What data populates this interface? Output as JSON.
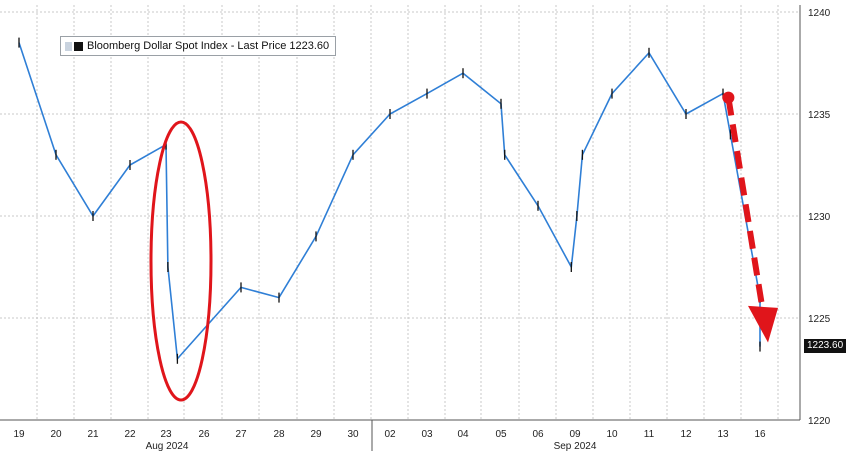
{
  "legend": {
    "label": "Bloomberg Dollar Spot Index - Last Price",
    "last_price": "1223.60"
  },
  "colors": {
    "line": "#2f7fd6",
    "candle": "#111111",
    "annotation": "#e0151b",
    "grid": "#c8c8c8"
  },
  "chart_data": {
    "type": "line",
    "title": "",
    "series": [
      {
        "name": "Bloomberg Dollar Spot Index - Last Price",
        "x": [
          "19",
          "20",
          "21",
          "22",
          "23",
          "23",
          "23",
          "26",
          "27",
          "28",
          "29",
          "30",
          "02",
          "03",
          "04",
          "04",
          "05",
          "06",
          "06",
          "06",
          "09",
          "10",
          "11",
          "12",
          "12",
          "13",
          "16"
        ],
        "x_index": [
          0,
          1,
          2,
          3,
          4,
          4.05,
          4.3,
          6,
          7,
          8,
          9,
          10,
          11,
          12,
          13,
          13.1,
          14,
          14.9,
          15.05,
          15.2,
          16,
          17,
          18,
          19,
          19.2,
          20,
          21
        ],
        "values": [
          1238.5,
          1233.0,
          1230.0,
          1232.5,
          1233.5,
          1227.5,
          1223.0,
          1226.5,
          1226.0,
          1229.0,
          1233.0,
          1235.0,
          1236.0,
          1237.0,
          1235.5,
          1233.0,
          1230.5,
          1227.5,
          1230.0,
          1233.0,
          1236.0,
          1238.0,
          1235.0,
          1236.0,
          1234.0,
          1226.0,
          1223.6
        ]
      }
    ],
    "x_tick_labels": [
      "19",
      "20",
      "21",
      "22",
      "23",
      "26",
      "27",
      "28",
      "29",
      "30",
      "02",
      "03",
      "04",
      "05",
      "06",
      "09",
      "10",
      "11",
      "12",
      "13",
      "16"
    ],
    "x_month_labels": [
      "Aug 2024",
      "Sep 2024"
    ],
    "y_ticks": [
      1220,
      1225,
      1230,
      1235,
      1240
    ],
    "ylim": [
      1220,
      1240
    ],
    "grid": true,
    "y_axis_side": "right",
    "annotations": [
      {
        "type": "ellipse",
        "around": "Aug 23 drop"
      },
      {
        "type": "arrow",
        "from_date": "12",
        "to_date": "16"
      }
    ]
  }
}
